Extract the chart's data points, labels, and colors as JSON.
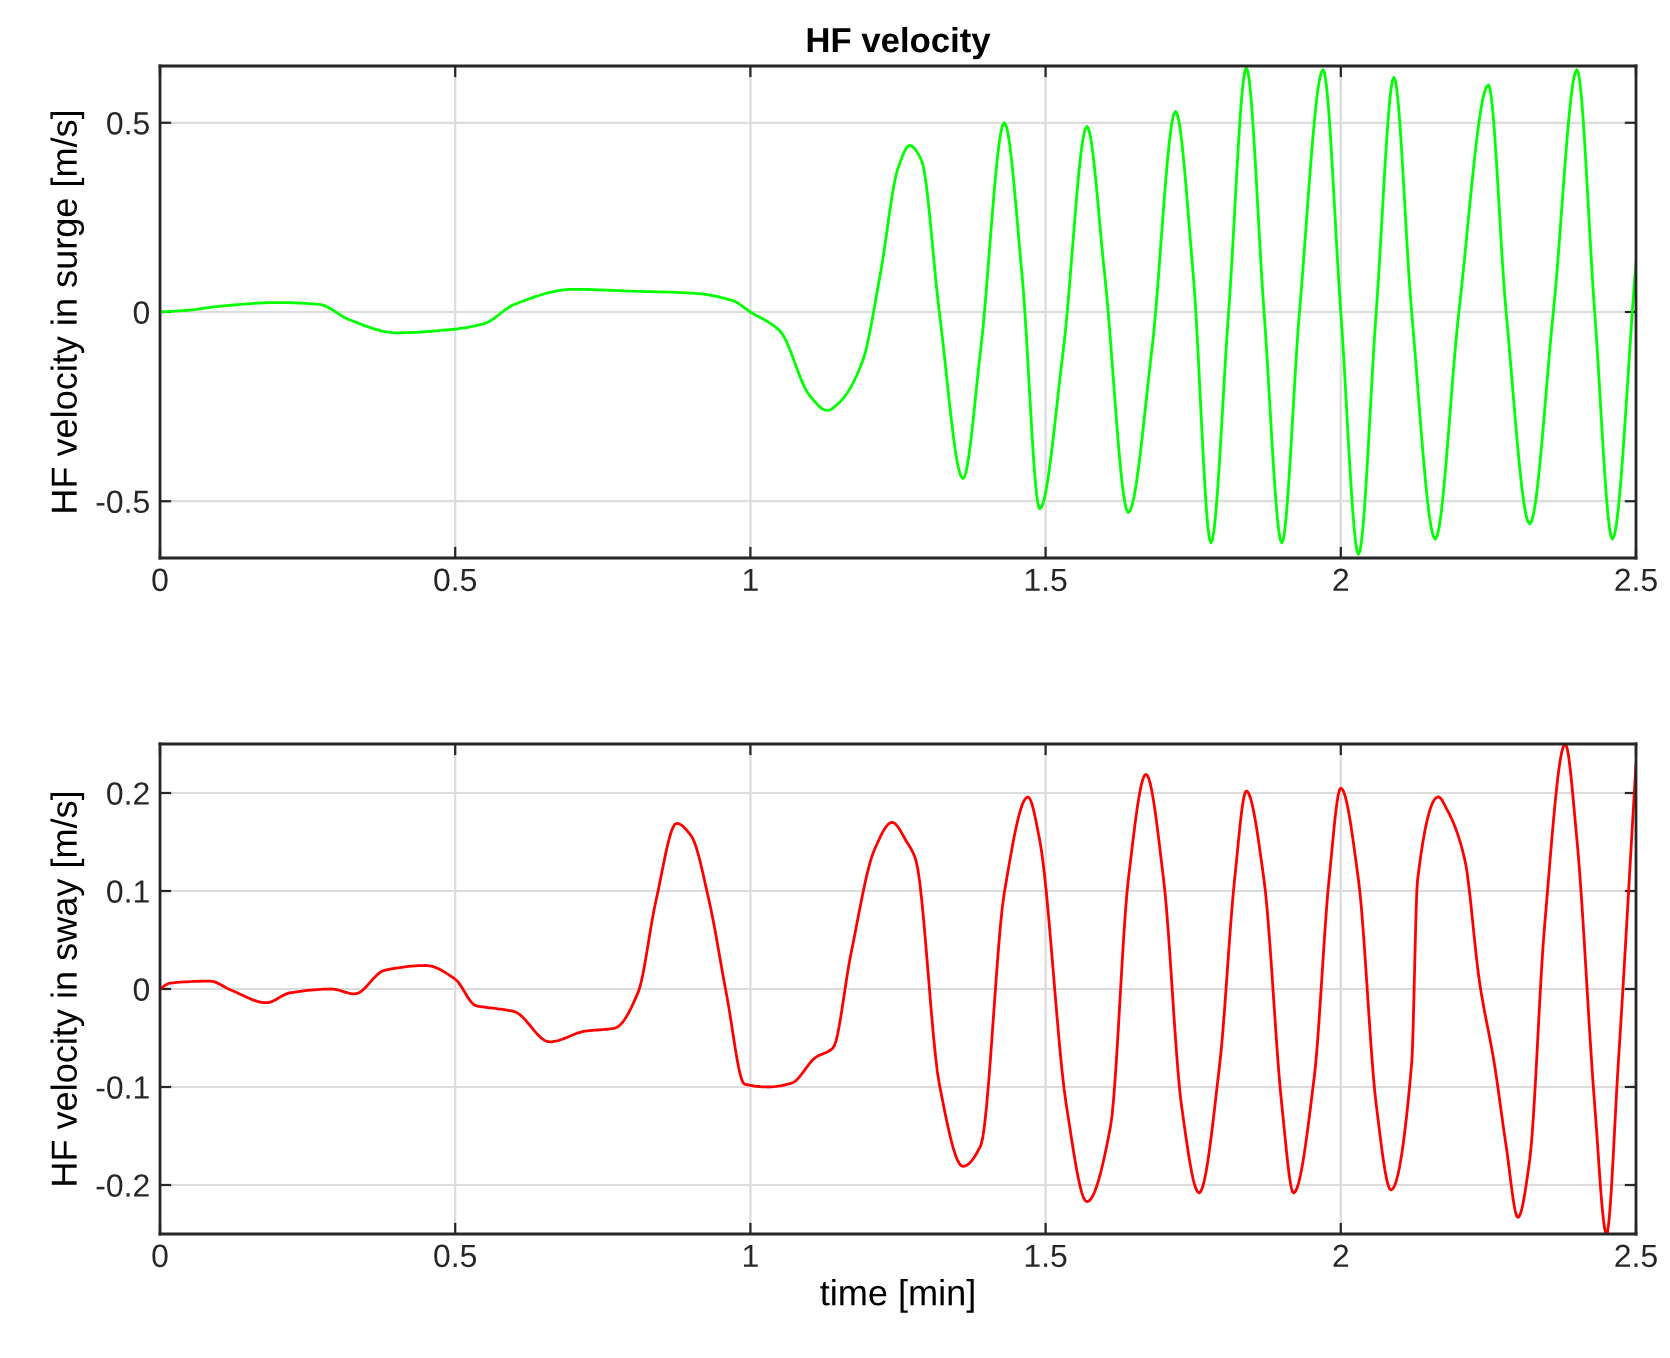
{
  "chart_data": [
    {
      "type": "line",
      "title": "HF velocity",
      "ylabel": "HF velocity in surge [m/s]",
      "xlim": [
        0,
        2.5
      ],
      "xticks": [
        0,
        0.5,
        1,
        1.5,
        2,
        2.5
      ],
      "ylim": [
        -0.65,
        0.65
      ],
      "yticks": [
        -0.5,
        0,
        0.5
      ],
      "grid": true,
      "series": [
        {
          "color": "#00ff00",
          "x": [
            0,
            0.05,
            0.1,
            0.2,
            0.27,
            0.32,
            0.4,
            0.5,
            0.55,
            0.6,
            0.7,
            0.8,
            0.9,
            0.97,
            1.0,
            1.05,
            1.1,
            1.13,
            1.15,
            1.19,
            1.22,
            1.25,
            1.27,
            1.29,
            1.32,
            1.36,
            1.39,
            1.43,
            1.46,
            1.49,
            1.53,
            1.57,
            1.6,
            1.64,
            1.68,
            1.72,
            1.75,
            1.78,
            1.81,
            1.84,
            1.87,
            1.9,
            1.93,
            1.97,
            2.0,
            2.03,
            2.06,
            2.09,
            2.12,
            2.16,
            2.2,
            2.25,
            2.28,
            2.32,
            2.36,
            2.4,
            2.43,
            2.46,
            2.5
          ],
          "values": [
            0,
            0.005,
            0.015,
            0.025,
            0.02,
            -0.02,
            -0.055,
            -0.045,
            -0.03,
            0.02,
            0.06,
            0.055,
            0.05,
            0.03,
            0,
            -0.05,
            -0.22,
            -0.26,
            -0.24,
            -0.13,
            0.1,
            0.38,
            0.44,
            0.4,
            0,
            -0.44,
            -0.1,
            0.5,
            0.1,
            -0.52,
            -0.1,
            0.49,
            0.1,
            -0.53,
            -0.1,
            0.53,
            0.1,
            -0.61,
            0,
            0.645,
            0,
            -0.61,
            0,
            0.64,
            0,
            -0.64,
            0,
            0.62,
            0,
            -0.6,
            0,
            0.6,
            0,
            -0.56,
            0,
            0.64,
            0,
            -0.6,
            0.13
          ]
        }
      ]
    },
    {
      "type": "line",
      "ylabel": "HF velocity in sway [m/s]",
      "xlabel": "time [min]",
      "xlim": [
        0,
        2.5
      ],
      "xticks": [
        0,
        0.5,
        1,
        1.5,
        2,
        2.5
      ],
      "ylim": [
        -0.25,
        0.25
      ],
      "yticks": [
        -0.2,
        -0.1,
        0,
        0.1,
        0.2
      ],
      "grid": true,
      "series": [
        {
          "color": "#ff0000",
          "x": [
            0,
            0.017,
            0.085,
            0.12,
            0.18,
            0.22,
            0.29,
            0.33,
            0.38,
            0.45,
            0.5,
            0.535,
            0.57,
            0.6,
            0.66,
            0.72,
            0.77,
            0.81,
            0.84,
            0.875,
            0.9,
            0.93,
            0.96,
            0.99,
            1.03,
            1.07,
            1.11,
            1.14,
            1.17,
            1.21,
            1.24,
            1.265,
            1.28,
            1.32,
            1.36,
            1.39,
            1.43,
            1.47,
            1.49,
            1.535,
            1.57,
            1.61,
            1.64,
            1.67,
            1.7,
            1.73,
            1.76,
            1.795,
            1.82,
            1.84,
            1.87,
            1.9,
            1.92,
            1.955,
            1.98,
            2.0,
            2.03,
            2.06,
            2.085,
            2.12,
            2.13,
            2.165,
            2.18,
            2.21,
            2.235,
            2.26,
            2.28,
            2.3,
            2.32,
            2.345,
            2.38,
            2.4,
            2.43,
            2.45,
            2.47,
            2.5
          ],
          "values": [
            0,
            0.006,
            0.008,
            -0.001,
            -0.014,
            -0.004,
            0,
            -0.005,
            0.019,
            0.024,
            0.01,
            -0.017,
            -0.02,
            -0.023,
            -0.054,
            -0.043,
            -0.04,
            -0.003,
            0.09,
            0.169,
            0.156,
            0.09,
            -0.007,
            -0.097,
            -0.1,
            -0.096,
            -0.07,
            -0.06,
            0.035,
            0.142,
            0.17,
            0.15,
            0.132,
            -0.097,
            -0.181,
            -0.16,
            0.098,
            0.196,
            0.152,
            -0.118,
            -0.217,
            -0.14,
            0.111,
            0.219,
            0.111,
            -0.118,
            -0.208,
            -0.076,
            0.111,
            0.202,
            0.111,
            -0.118,
            -0.208,
            -0.09,
            0.111,
            0.205,
            0.111,
            -0.118,
            -0.205,
            -0.076,
            0.111,
            0.196,
            0.183,
            0.132,
            0.007,
            -0.076,
            -0.16,
            -0.233,
            -0.174,
            0.063,
            0.25,
            0.152,
            -0.118,
            -0.25,
            -0.076,
            0.23
          ]
        }
      ]
    }
  ]
}
